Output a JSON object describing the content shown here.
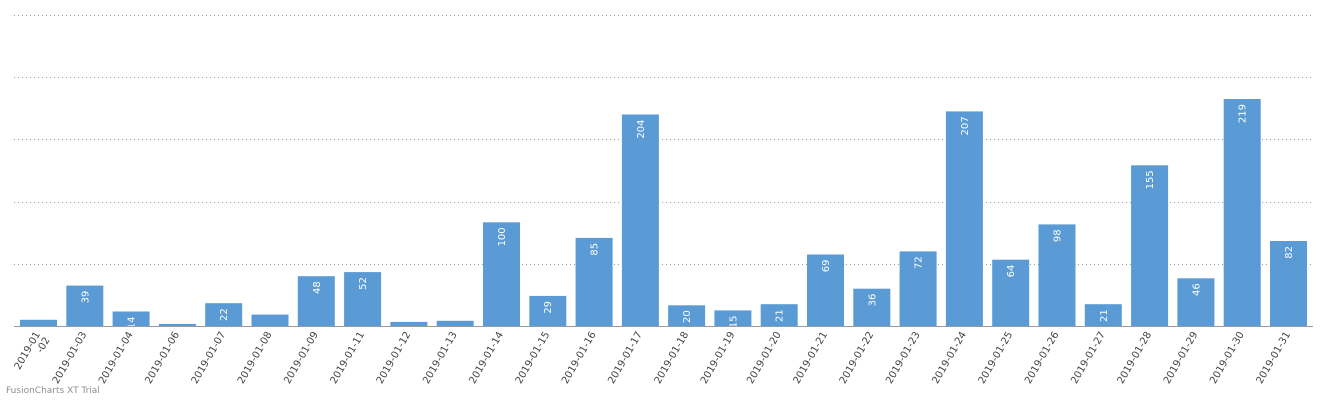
{
  "chart_data": {
    "type": "bar",
    "categories": [
      "2019-01-02",
      "2019-01-03",
      "2019-01-04",
      "2019-01-06",
      "2019-01-07",
      "2019-01-08",
      "2019-01-09",
      "2019-01-11",
      "2019-01-12",
      "2019-01-13",
      "2019-01-14",
      "2019-01-15",
      "2019-01-16",
      "2019-01-17",
      "2019-01-18",
      "2019-01-19",
      "2019-01-20",
      "2019-01-21",
      "2019-01-22",
      "2019-01-23",
      "2019-01-24",
      "2019-01-25",
      "2019-01-26",
      "2019-01-27",
      "2019-01-28",
      "2019-01-29",
      "2019-01-30",
      "2019-01-31"
    ],
    "tick_labels": [
      [
        "2019-01",
        "-02"
      ],
      [
        "2019-01-03"
      ],
      [
        "2019-01-04"
      ],
      [
        "2019-01-06"
      ],
      [
        "2019-01-07"
      ],
      [
        "2019-01-08"
      ],
      [
        "2019-01-09"
      ],
      [
        "2019-01-11"
      ],
      [
        "2019-01-12"
      ],
      [
        "2019-01-13"
      ],
      [
        "2019-01-14"
      ],
      [
        "2019-01-15"
      ],
      [
        "2019-01-16"
      ],
      [
        "2019-01-17"
      ],
      [
        "2019-01-18"
      ],
      [
        "2019-01-19"
      ],
      [
        "2019-01-20"
      ],
      [
        "2019-01-21"
      ],
      [
        "2019-01-22"
      ],
      [
        "2019-01-23"
      ],
      [
        "2019-01-24"
      ],
      [
        "2019-01-25"
      ],
      [
        "2019-01-26"
      ],
      [
        "2019-01-27"
      ],
      [
        "2019-01-28"
      ],
      [
        "2019-01-29"
      ],
      [
        "2019-01-30"
      ],
      [
        "2019-01-31"
      ]
    ],
    "values": [
      6,
      39,
      14,
      2,
      22,
      11,
      48,
      52,
      4,
      5,
      100,
      29,
      85,
      204,
      20,
      15,
      21,
      69,
      36,
      72,
      207,
      64,
      98,
      21,
      155,
      46,
      219,
      82
    ],
    "value_labels": [
      "",
      "39",
      "14",
      "",
      "22",
      "",
      "48",
      "52",
      "",
      "",
      "100",
      "29",
      "85",
      "204",
      "20",
      "15",
      "21",
      "69",
      "36",
      "72",
      "207",
      "64",
      "98",
      "21",
      "155",
      "46",
      "219",
      "82"
    ],
    "title": "",
    "xlabel": "",
    "ylabel": "",
    "ylim": [
      0,
      300
    ],
    "gridlines": [
      0,
      60,
      120,
      180,
      240,
      300
    ],
    "grid": true,
    "legend": "none",
    "bar_color": "#5a9bd5"
  },
  "watermark": "FusionCharts XT Trial"
}
